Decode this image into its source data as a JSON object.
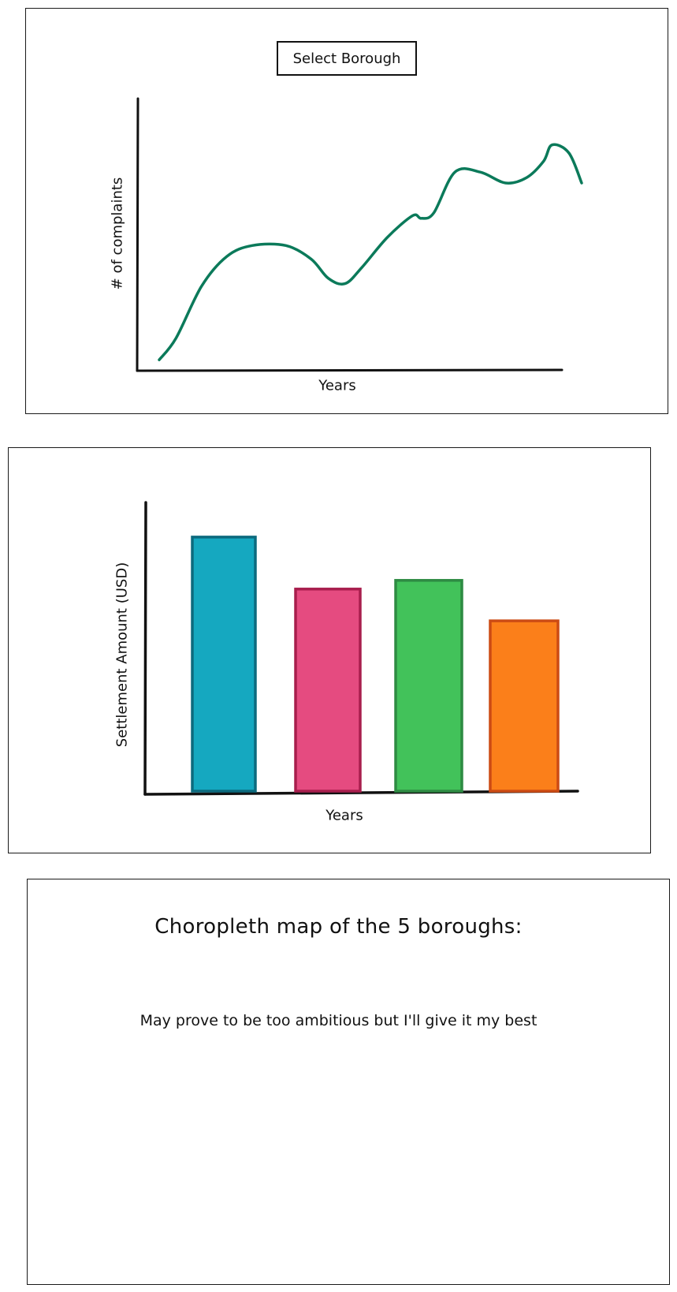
{
  "line_panel": {
    "select_label": "Select Borough",
    "ylabel": "# of complaints",
    "xlabel": "Years"
  },
  "bar_panel": {
    "ylabel": "Settlement Amount (USD)",
    "xlabel": "Years"
  },
  "map_panel": {
    "title": "Choropleth map of the 5 boroughs:",
    "note": "May prove to be too ambitious but I'll give it my best"
  },
  "chart_data": [
    {
      "type": "line",
      "title": "",
      "xlabel": "Years",
      "ylabel": "# of complaints",
      "grid": false,
      "line_color": "#0b7a5a",
      "x": [
        0,
        0.04,
        0.1,
        0.16,
        0.22,
        0.3,
        0.36,
        0.4,
        0.44,
        0.48,
        0.54,
        0.6,
        0.62,
        0.65,
        0.7,
        0.76,
        0.82,
        0.87,
        0.91,
        0.93,
        0.97,
        1.0
      ],
      "y": [
        0.04,
        0.12,
        0.31,
        0.42,
        0.46,
        0.46,
        0.41,
        0.34,
        0.32,
        0.38,
        0.49,
        0.57,
        0.56,
        0.58,
        0.73,
        0.73,
        0.69,
        0.71,
        0.77,
        0.83,
        0.8,
        0.69
      ]
    },
    {
      "type": "bar",
      "title": "",
      "xlabel": "Years",
      "ylabel": "Settlement Amount (USD)",
      "grid": false,
      "categories": [
        "",
        "",
        "",
        ""
      ],
      "values": [
        0.88,
        0.7,
        0.73,
        0.59
      ],
      "colors": [
        {
          "fill": "#15a8c0",
          "stroke": "#0c6a7e"
        },
        {
          "fill": "#e54b80",
          "stroke": "#a81e4d"
        },
        {
          "fill": "#42c25a",
          "stroke": "#2e8b43"
        },
        {
          "fill": "#fb7f1a",
          "stroke": "#cc4b14"
        }
      ]
    }
  ]
}
